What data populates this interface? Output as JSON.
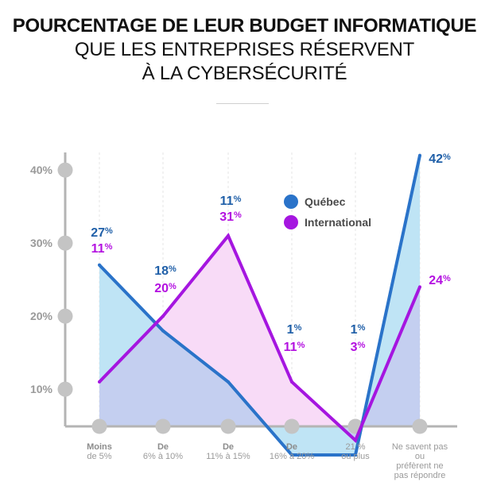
{
  "title": {
    "line1": "POURCENTAGE DE LEUR BUDGET INFORMATIQUE",
    "line2": "QUE LES ENTREPRISES RÉSERVENT",
    "line3": "À LA CYBERSÉCURITÉ"
  },
  "colors": {
    "quebec": "#2a73c9",
    "quebec_label": "#1f5fa8",
    "quebec_fill": "#bfe4f5",
    "international": "#a516e0",
    "international_label": "#b310e0",
    "international_fill": "#f8dbf7",
    "overlap_fill": "#c4cff0",
    "axis": "#b4b4b4",
    "tick_text": "#9a9a9a"
  },
  "chart_data": {
    "type": "area",
    "title": "POURCENTAGE DE LEUR BUDGET INFORMATIQUE QUE LES ENTREPRISES RÉSERVENT À LA CYBERSÉCURITÉ",
    "categories": [
      {
        "strong": "Moins",
        "rest": "de 5%"
      },
      {
        "strong": "De",
        "rest": "6% à 10%"
      },
      {
        "strong": "De",
        "rest": "11% à 15%"
      },
      {
        "strong": "De",
        "rest": "16% à 20%"
      },
      {
        "strong": "",
        "rest": "21 %\nou plus"
      },
      {
        "strong": "",
        "rest": "Ne savent pas\nou\npréfèrent ne\npas répondre"
      }
    ],
    "series": [
      {
        "name": "Québec",
        "values": [
          27,
          18,
          11,
          1,
          1,
          42
        ],
        "labels": [
          "27%",
          "18%",
          "11%",
          "1%",
          "1%",
          "42%"
        ]
      },
      {
        "name": "International",
        "values": [
          11,
          20,
          31,
          11,
          3,
          24
        ],
        "labels": [
          "11%",
          "20%",
          "31%",
          "11%",
          "3%",
          "24%"
        ]
      }
    ],
    "yticks": [
      {
        "value": 40,
        "label": "40%"
      },
      {
        "value": 30,
        "label": "30%"
      },
      {
        "value": 20,
        "label": "20%"
      },
      {
        "value": 10,
        "label": "10%"
      }
    ],
    "xlabel": "",
    "ylabel": "",
    "legend": "top-right",
    "grid": true
  }
}
